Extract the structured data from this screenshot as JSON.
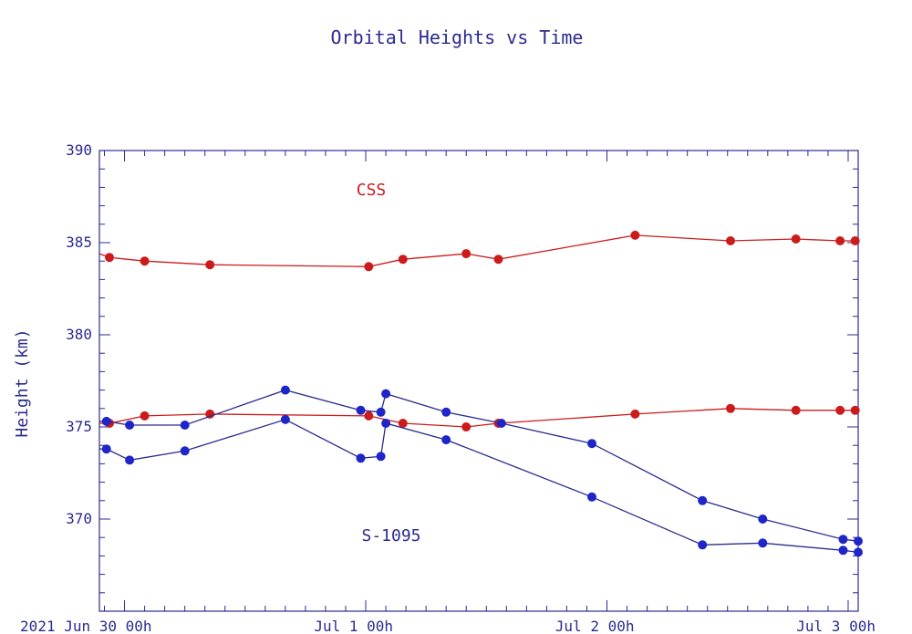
{
  "chart_data": {
    "type": "line",
    "title": "Orbital Heights vs Time",
    "xlabel": "",
    "ylabel": "Height (km)",
    "x_unit": "hours from 2021 Jun 30 00h",
    "xlim": [
      -2.5,
      73
    ],
    "ylim": [
      365,
      390
    ],
    "y_ticks": [
      390,
      385,
      380,
      375,
      370
    ],
    "x_tick_labels": [
      {
        "x": 0,
        "label": "2021 Jun 30  00h"
      },
      {
        "x": 24,
        "label": "Jul  1  00h"
      },
      {
        "x": 48,
        "label": "Jul  2  00h"
      },
      {
        "x": 72,
        "label": "Jul  3  00h"
      }
    ],
    "annotations": [
      "CSS",
      "S-1095"
    ],
    "colors": {
      "frame": "#2b2b8f",
      "css": "#cc1b1b",
      "s1095": "#1f26c8"
    },
    "series": [
      {
        "group": "CSS",
        "points": [
          [
            -2.5,
            384.4
          ],
          [
            -1.5,
            384.2
          ],
          [
            2.0,
            384.0
          ],
          [
            8.5,
            383.8
          ],
          [
            24.3,
            383.7
          ],
          [
            27.7,
            384.1
          ],
          [
            34.0,
            384.4
          ],
          [
            37.2,
            384.1
          ],
          [
            50.8,
            385.4
          ],
          [
            60.3,
            385.1
          ],
          [
            66.8,
            385.2
          ],
          [
            71.2,
            385.1
          ],
          [
            72.7,
            385.1
          ]
        ]
      },
      {
        "group": "CSS",
        "points": [
          [
            -2.5,
            375.2
          ],
          [
            -1.5,
            375.2
          ],
          [
            2.0,
            375.6
          ],
          [
            8.5,
            375.7
          ],
          [
            24.3,
            375.6
          ],
          [
            27.7,
            375.2
          ],
          [
            34.0,
            375.0
          ],
          [
            37.2,
            375.2
          ],
          [
            50.8,
            375.7
          ],
          [
            60.3,
            376.0
          ],
          [
            66.8,
            375.9
          ],
          [
            71.2,
            375.9
          ],
          [
            72.7,
            375.9
          ]
        ]
      },
      {
        "group": "S-1095",
        "points": [
          [
            -2.5,
            375.3
          ],
          [
            -1.8,
            375.3
          ],
          [
            0.5,
            375.1
          ],
          [
            6.0,
            375.1
          ],
          [
            16.0,
            377.0
          ],
          [
            23.5,
            375.9
          ],
          [
            25.5,
            375.8
          ],
          [
            26.0,
            376.8
          ],
          [
            32.0,
            375.8
          ],
          [
            37.5,
            375.2
          ],
          [
            46.5,
            374.1
          ],
          [
            57.5,
            371.0
          ],
          [
            63.5,
            370.0
          ],
          [
            71.5,
            368.9
          ],
          [
            73.0,
            368.8
          ]
        ]
      },
      {
        "group": "S-1095",
        "points": [
          [
            -2.5,
            373.8
          ],
          [
            -1.8,
            373.8
          ],
          [
            0.5,
            373.2
          ],
          [
            6.0,
            373.7
          ],
          [
            16.0,
            375.4
          ],
          [
            23.5,
            373.3
          ],
          [
            25.5,
            373.4
          ],
          [
            26.0,
            375.2
          ],
          [
            32.0,
            374.3
          ],
          [
            46.5,
            371.2
          ],
          [
            57.5,
            368.6
          ],
          [
            63.5,
            368.7
          ],
          [
            71.5,
            368.3
          ],
          [
            73.0,
            368.2
          ]
        ]
      }
    ]
  }
}
